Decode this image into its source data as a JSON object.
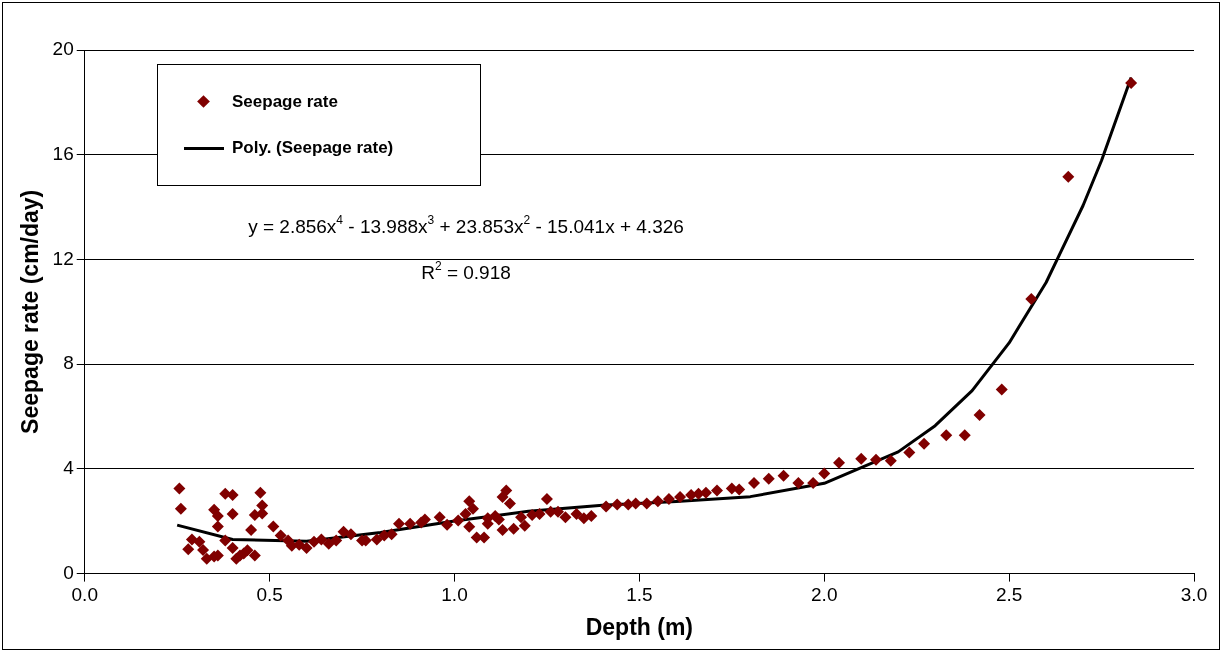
{
  "chart_data": {
    "type": "scatter",
    "xlabel": "Depth (m)",
    "ylabel": "Seepage rate (cm/day)",
    "xlim": [
      0,
      3
    ],
    "xticks": [
      {
        "value": 0,
        "label": "0.0"
      },
      {
        "value": 0.5,
        "label": "0.5"
      },
      {
        "value": 1,
        "label": "1.0"
      },
      {
        "value": 1.5,
        "label": "1.5"
      },
      {
        "value": 2,
        "label": "2.0"
      },
      {
        "value": 2.5,
        "label": "2.5"
      },
      {
        "value": 3,
        "label": "3.0"
      }
    ],
    "ylim": [
      0,
      20
    ],
    "yticks": [
      0,
      4,
      8,
      12,
      16,
      20
    ],
    "grid": "y",
    "legend": "top left",
    "marker": "diamond",
    "annotations": [
      "y = 2.856x$^{4}$ - 13.988x$^{3}$ + 23.853x$^{2}$ - 15.041x + 4.326",
      "R$^{2}$ = 0.918"
    ],
    "series": [
      {
        "name": "Seepage rate",
        "color": "#800000",
        "x": [
          0.256,
          0.26,
          0.28,
          0.29,
          0.31,
          0.32,
          0.33,
          0.35,
          0.36,
          0.35,
          0.36,
          0.36,
          0.38,
          0.4,
          0.4,
          0.38,
          0.4,
          0.41,
          0.42,
          0.43,
          0.44,
          0.46,
          0.45,
          0.46,
          0.475,
          0.48,
          0.48,
          0.51,
          0.53,
          0.55,
          0.56,
          0.58,
          0.6,
          0.62,
          0.64,
          0.66,
          0.68,
          0.7,
          0.72,
          0.75,
          0.76,
          0.79,
          0.81,
          0.83,
          0.85,
          0.88,
          0.91,
          0.92,
          0.96,
          0.98,
          1.01,
          1.03,
          1.04,
          1.05,
          1.04,
          1.06,
          1.08,
          1.09,
          1.09,
          1.11,
          1.12,
          1.13,
          1.14,
          1.15,
          1.13,
          1.16,
          1.18,
          1.19,
          1.21,
          1.23,
          1.25,
          1.26,
          1.28,
          1.3,
          1.33,
          1.35,
          1.37,
          1.41,
          1.44,
          1.47,
          1.49,
          1.52,
          1.55,
          1.58,
          1.61,
          1.64,
          1.66,
          1.68,
          1.71,
          1.75,
          1.77,
          1.81,
          1.85,
          1.89,
          1.93,
          1.97,
          2.0,
          2.04,
          2.1,
          2.14,
          2.18,
          2.23,
          2.27,
          2.33,
          2.38,
          2.42,
          2.48,
          2.56,
          2.66,
          2.83
        ],
        "values": [
          3.25,
          2.48,
          0.93,
          1.3,
          1.22,
          0.9,
          0.57,
          0.65,
          0.69,
          2.44,
          2.2,
          1.8,
          3.05,
          3.0,
          2.28,
          1.26,
          0.98,
          0.57,
          0.69,
          0.77,
          0.89,
          0.69,
          1.67,
          2.24,
          3.09,
          2.6,
          2.3,
          1.8,
          1.46,
          1.26,
          1.06,
          1.1,
          0.98,
          1.22,
          1.3,
          1.14,
          1.26,
          1.6,
          1.5,
          1.26,
          1.26,
          1.3,
          1.46,
          1.5,
          1.9,
          1.9,
          1.95,
          2.07,
          2.15,
          1.87,
          2.03,
          2.28,
          2.76,
          2.48,
          1.79,
          1.38,
          1.38,
          1.9,
          2.11,
          2.2,
          2.07,
          2.93,
          3.17,
          2.68,
          1.67,
          1.71,
          2.15,
          1.83,
          2.24,
          2.28,
          2.85,
          2.36,
          2.36,
          2.15,
          2.28,
          2.11,
          2.2,
          2.56,
          2.64,
          2.64,
          2.68,
          2.68,
          2.76,
          2.85,
          2.93,
          3.0,
          3.05,
          3.09,
          3.17,
          3.25,
          3.21,
          3.46,
          3.62,
          3.74,
          3.46,
          3.46,
          3.82,
          4.23,
          4.39,
          4.35,
          4.31,
          4.63,
          4.96,
          5.28,
          5.28,
          6.06,
          7.03,
          10.49,
          15.16,
          18.74
        ]
      },
      {
        "name": "Poly. (Seepage rate)",
        "type": "line",
        "color": "#000000",
        "marker": "none",
        "line_style": "solid",
        "x": [
          0.25,
          0.4,
          0.6,
          0.8,
          1.0,
          1.2,
          1.4,
          1.6,
          1.8,
          2.0,
          2.2,
          2.3,
          2.4,
          2.5,
          2.6,
          2.7,
          2.75,
          2.83
        ],
        "values": [
          1.85,
          1.3,
          1.24,
          1.57,
          2.01,
          2.38,
          2.61,
          2.75,
          2.94,
          3.45,
          4.65,
          5.65,
          6.99,
          8.81,
          11.12,
          14.06,
          15.78,
          18.95
        ]
      }
    ]
  }
}
